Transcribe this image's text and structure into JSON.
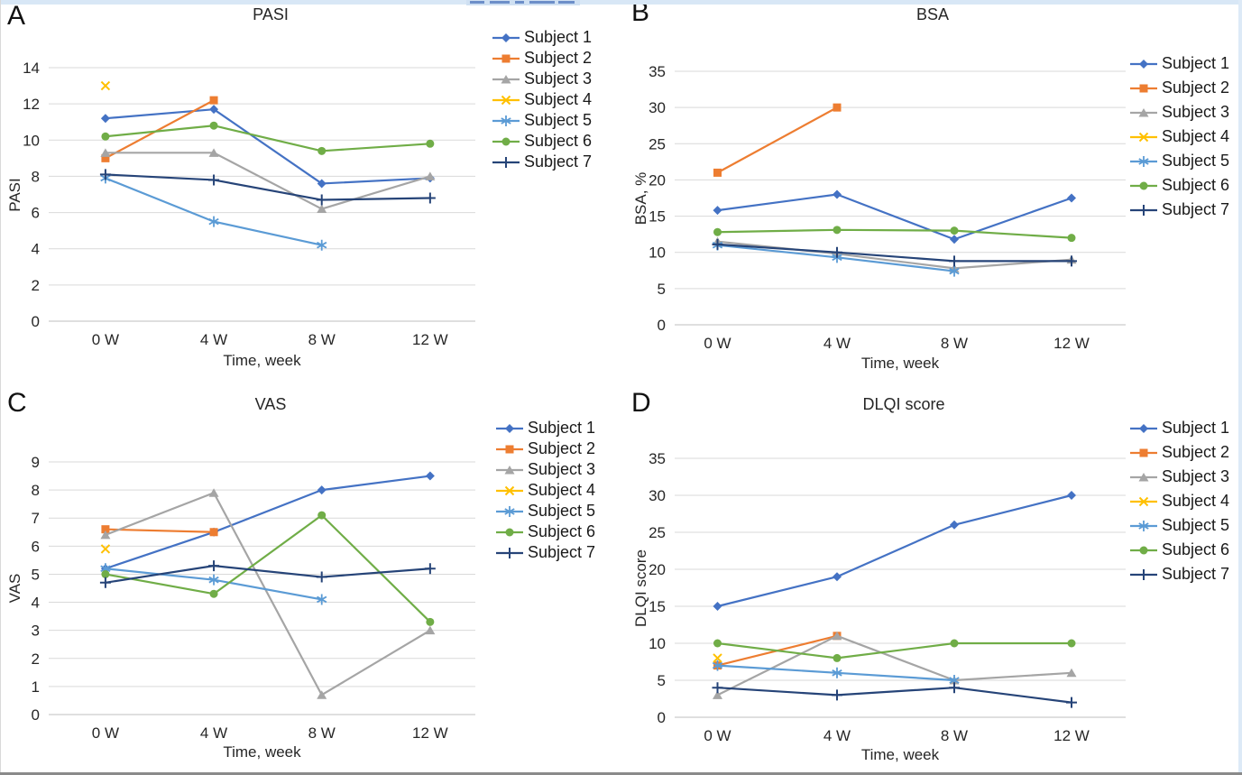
{
  "figure": {
    "panel_letters": [
      "A",
      "B",
      "C",
      "D"
    ]
  },
  "chart_data": [
    {
      "type": "line",
      "panel": "A",
      "id": "pasi",
      "title": "PASI",
      "xlabel": "Time, week",
      "ylabel": "PASI",
      "ylim": [
        0,
        14
      ],
      "ytick_step": 2,
      "categories": [
        "0 W",
        "4 W",
        "8 W",
        "12 W"
      ],
      "grid": "horizontal",
      "legend_position": "right",
      "series": [
        {
          "name": "Subject 1",
          "color": "#4472C4",
          "marker": "diamond",
          "values": [
            11.2,
            11.7,
            7.6,
            7.9
          ]
        },
        {
          "name": "Subject 2",
          "color": "#ED7D31",
          "marker": "square",
          "values": [
            9.0,
            12.2,
            null,
            null
          ]
        },
        {
          "name": "Subject 3",
          "color": "#A5A5A5",
          "marker": "triangle",
          "values": [
            9.3,
            9.3,
            6.2,
            8.0
          ]
        },
        {
          "name": "Subject 4",
          "color": "#FFC000",
          "marker": "x",
          "values": [
            13.0,
            null,
            null,
            null
          ]
        },
        {
          "name": "Subject 5",
          "color": "#5B9BD5",
          "marker": "asterisk",
          "values": [
            7.9,
            5.5,
            4.2,
            null
          ]
        },
        {
          "name": "Subject 6",
          "color": "#70AD47",
          "marker": "circle",
          "values": [
            10.2,
            10.8,
            9.4,
            9.8
          ]
        },
        {
          "name": "Subject 7",
          "color": "#264478",
          "marker": "plus",
          "values": [
            8.1,
            7.8,
            6.7,
            6.8
          ]
        }
      ]
    },
    {
      "type": "line",
      "panel": "B",
      "id": "bsa",
      "title": "BSA",
      "xlabel": "Time, week",
      "ylabel": "BSA, %",
      "ylim": [
        0,
        35
      ],
      "ytick_step": 5,
      "categories": [
        "0 W",
        "4 W",
        "8 W",
        "12 W"
      ],
      "grid": "horizontal",
      "legend_position": "right",
      "series": [
        {
          "name": "Subject 1",
          "color": "#4472C4",
          "marker": "diamond",
          "values": [
            15.8,
            18.0,
            11.8,
            17.5
          ]
        },
        {
          "name": "Subject 2",
          "color": "#ED7D31",
          "marker": "square",
          "values": [
            21.0,
            30.0,
            null,
            null
          ]
        },
        {
          "name": "Subject 3",
          "color": "#A5A5A5",
          "marker": "triangle",
          "values": [
            11.5,
            9.8,
            7.8,
            9.0
          ]
        },
        {
          "name": "Subject 4",
          "color": "#FFC000",
          "marker": "x",
          "values": [
            null,
            null,
            null,
            null
          ]
        },
        {
          "name": "Subject 5",
          "color": "#5B9BD5",
          "marker": "asterisk",
          "values": [
            11.0,
            9.3,
            7.4,
            null
          ]
        },
        {
          "name": "Subject 6",
          "color": "#70AD47",
          "marker": "circle",
          "values": [
            12.8,
            13.1,
            13.0,
            12.0
          ]
        },
        {
          "name": "Subject 7",
          "color": "#264478",
          "marker": "plus",
          "values": [
            11.1,
            10.0,
            8.8,
            8.8
          ]
        }
      ]
    },
    {
      "type": "line",
      "panel": "C",
      "id": "vas",
      "title": "VAS",
      "xlabel": "Time, week",
      "ylabel": "VAS",
      "ylim": [
        0,
        9
      ],
      "ytick_step": 1,
      "categories": [
        "0 W",
        "4 W",
        "8 W",
        "12 W"
      ],
      "grid": "horizontal",
      "legend_position": "right",
      "series": [
        {
          "name": "Subject 1",
          "color": "#4472C4",
          "marker": "diamond",
          "values": [
            5.2,
            6.5,
            8.0,
            8.5
          ]
        },
        {
          "name": "Subject 2",
          "color": "#ED7D31",
          "marker": "square",
          "values": [
            6.6,
            6.5,
            null,
            null
          ]
        },
        {
          "name": "Subject 3",
          "color": "#A5A5A5",
          "marker": "triangle",
          "values": [
            6.4,
            7.9,
            0.7,
            3.0
          ]
        },
        {
          "name": "Subject 4",
          "color": "#FFC000",
          "marker": "x",
          "values": [
            5.9,
            null,
            null,
            null
          ]
        },
        {
          "name": "Subject 5",
          "color": "#5B9BD5",
          "marker": "asterisk",
          "values": [
            5.2,
            4.8,
            4.1,
            null
          ]
        },
        {
          "name": "Subject 6",
          "color": "#70AD47",
          "marker": "circle",
          "values": [
            5.0,
            4.3,
            7.1,
            3.3
          ]
        },
        {
          "name": "Subject 7",
          "color": "#264478",
          "marker": "plus",
          "values": [
            4.7,
            5.3,
            4.9,
            5.2
          ]
        }
      ]
    },
    {
      "type": "line",
      "panel": "D",
      "id": "dlqi",
      "title": "DLQI score",
      "xlabel": "Time, week",
      "ylabel": "DLQI score",
      "ylim": [
        0,
        35
      ],
      "ytick_step": 5,
      "categories": [
        "0 W",
        "4 W",
        "8 W",
        "12 W"
      ],
      "grid": "horizontal",
      "legend_position": "right",
      "series": [
        {
          "name": "Subject 1",
          "color": "#4472C4",
          "marker": "diamond",
          "values": [
            15,
            19,
            26,
            30
          ]
        },
        {
          "name": "Subject 2",
          "color": "#ED7D31",
          "marker": "square",
          "values": [
            7,
            11,
            null,
            null
          ]
        },
        {
          "name": "Subject 3",
          "color": "#A5A5A5",
          "marker": "triangle",
          "values": [
            3,
            11,
            5,
            6
          ]
        },
        {
          "name": "Subject 4",
          "color": "#FFC000",
          "marker": "x",
          "values": [
            8,
            null,
            null,
            null
          ]
        },
        {
          "name": "Subject 5",
          "color": "#5B9BD5",
          "marker": "asterisk",
          "values": [
            7,
            6,
            5,
            null
          ]
        },
        {
          "name": "Subject 6",
          "color": "#70AD47",
          "marker": "circle",
          "values": [
            10,
            8,
            10,
            10
          ]
        },
        {
          "name": "Subject 7",
          "color": "#264478",
          "marker": "plus",
          "values": [
            4,
            3,
            4,
            2
          ]
        }
      ]
    }
  ]
}
